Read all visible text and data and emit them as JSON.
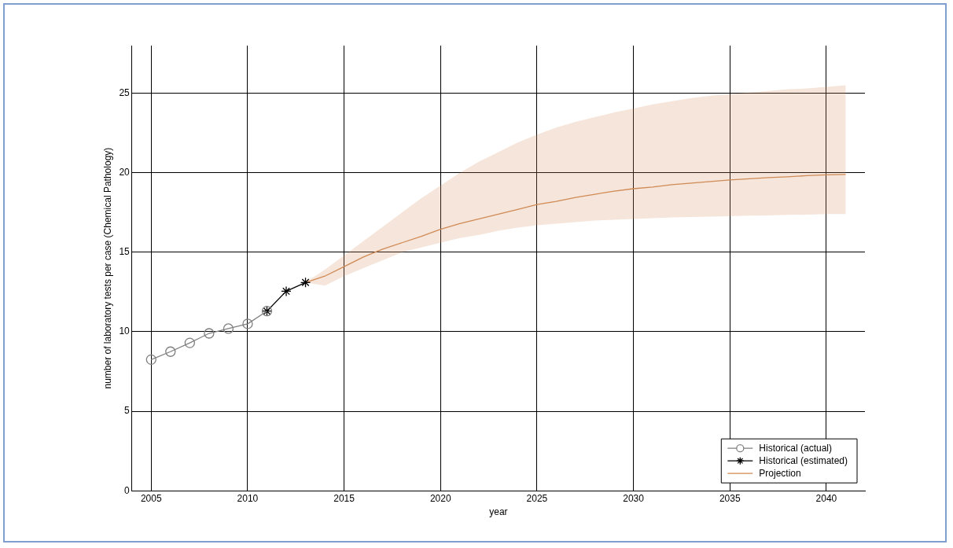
{
  "chart_data": {
    "type": "line",
    "xlabel": "year",
    "ylabel": "number of laboratory tests per case (Chemical Pathology)",
    "xlim": [
      2004,
      2042
    ],
    "xticks": [
      2005,
      2010,
      2015,
      2020,
      2025,
      2030,
      2035,
      2040
    ],
    "ylim": [
      0,
      28
    ],
    "yticks": [
      0,
      5,
      10,
      15,
      20,
      25
    ],
    "grid": true,
    "legend": "bottom right",
    "line_style": "solid",
    "series": [
      {
        "name": "Historical (actual)",
        "color": "#808080",
        "marker": "circle",
        "x": [
          2005,
          2006,
          2007,
          2008,
          2009,
          2010,
          2011
        ],
        "values": [
          8.25,
          8.75,
          9.3,
          9.9,
          10.2,
          10.5,
          11.3
        ]
      },
      {
        "name": "Historical (estimated)",
        "color": "#000000",
        "marker": "cross",
        "x": [
          2011,
          2012,
          2013
        ],
        "values": [
          11.3,
          12.55,
          13.1
        ]
      },
      {
        "name": "Projection",
        "color": "#d08a55",
        "marker": "none",
        "x": [
          2013,
          2014,
          2015,
          2016,
          2017,
          2018,
          2019,
          2020,
          2021,
          2022,
          2023,
          2024,
          2025,
          2026,
          2027,
          2028,
          2029,
          2030,
          2031,
          2032,
          2033,
          2034,
          2035,
          2036,
          2037,
          2038,
          2039,
          2040,
          2041
        ],
        "values": [
          13.1,
          13.5,
          14.1,
          14.7,
          15.2,
          15.6,
          16.0,
          16.45,
          16.8,
          17.1,
          17.4,
          17.7,
          18.0,
          18.2,
          18.45,
          18.65,
          18.85,
          19.0,
          19.1,
          19.25,
          19.35,
          19.45,
          19.55,
          19.62,
          19.7,
          19.75,
          19.82,
          19.87,
          19.9
        ],
        "upper": [
          13.1,
          13.9,
          14.8,
          15.7,
          16.6,
          17.5,
          18.4,
          19.2,
          20.0,
          20.7,
          21.3,
          21.9,
          22.4,
          22.85,
          23.2,
          23.5,
          23.8,
          24.05,
          24.3,
          24.5,
          24.7,
          24.85,
          24.95,
          25.05,
          25.15,
          25.25,
          25.3,
          25.4,
          25.5
        ],
        "lower": [
          13.1,
          12.9,
          13.5,
          14.0,
          14.5,
          15.0,
          15.3,
          15.6,
          15.9,
          16.1,
          16.35,
          16.55,
          16.7,
          16.8,
          16.9,
          17.0,
          17.05,
          17.1,
          17.15,
          17.2,
          17.22,
          17.25,
          17.27,
          17.3,
          17.32,
          17.35,
          17.37,
          17.4,
          17.4
        ]
      }
    ]
  }
}
